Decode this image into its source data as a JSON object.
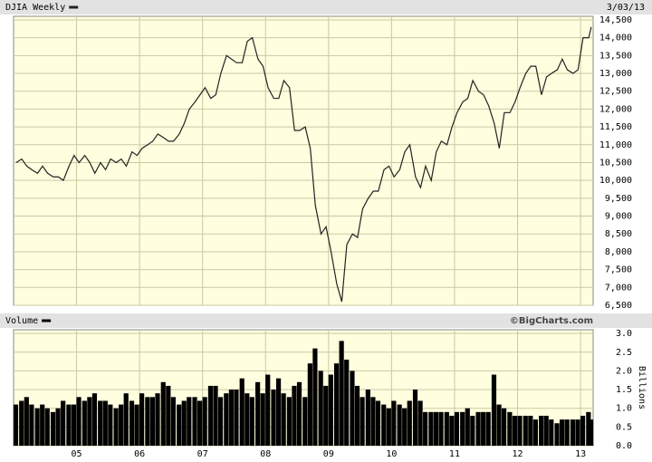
{
  "chart_data": [
    {
      "type": "line",
      "date": "3/03/13",
      "x": [
        2004.04,
        2004.13,
        2004.21,
        2004.29,
        2004.38,
        2004.46,
        2004.54,
        2004.63,
        2004.71,
        2004.79,
        2004.88,
        2004.96,
        2005.04,
        2005.13,
        2005.21,
        2005.29,
        2005.38,
        2005.46,
        2005.54,
        2005.63,
        2005.71,
        2005.79,
        2005.88,
        2005.96,
        2006.04,
        2006.13,
        2006.21,
        2006.29,
        2006.38,
        2006.46,
        2006.54,
        2006.63,
        2006.71,
        2006.79,
        2006.88,
        2006.96,
        2007.04,
        2007.13,
        2007.21,
        2007.29,
        2007.38,
        2007.46,
        2007.54,
        2007.63,
        2007.71,
        2007.79,
        2007.88,
        2007.96,
        2008.04,
        2008.13,
        2008.21,
        2008.29,
        2008.38,
        2008.46,
        2008.54,
        2008.63,
        2008.71,
        2008.79,
        2008.88,
        2008.96,
        2009.04,
        2009.13,
        2009.21,
        2009.29,
        2009.38,
        2009.46,
        2009.54,
        2009.63,
        2009.71,
        2009.79,
        2009.88,
        2009.96,
        2010.04,
        2010.13,
        2010.21,
        2010.29,
        2010.38,
        2010.46,
        2010.54,
        2010.63,
        2010.71,
        2010.79,
        2010.88,
        2010.96,
        2011.04,
        2011.13,
        2011.21,
        2011.29,
        2011.38,
        2011.46,
        2011.54,
        2011.63,
        2011.71,
        2011.79,
        2011.88,
        2011.96,
        2012.04,
        2012.13,
        2012.21,
        2012.29,
        2012.38,
        2012.46,
        2012.54,
        2012.63,
        2012.71,
        2012.79,
        2012.88,
        2012.96,
        2013.04,
        2013.13,
        2013.17
      ],
      "series": [
        {
          "name": "DJIA Weekly",
          "color": "#222222",
          "values": [
            10500,
            10600,
            10400,
            10300,
            10200,
            10400,
            10200,
            10100,
            10100,
            10000,
            10400,
            10700,
            10500,
            10700,
            10500,
            10200,
            10500,
            10300,
            10600,
            10500,
            10600,
            10400,
            10800,
            10700,
            10900,
            11000,
            11100,
            11300,
            11200,
            11100,
            11100,
            11300,
            11600,
            12000,
            12200,
            12400,
            12600,
            12300,
            12400,
            13000,
            13500,
            13400,
            13300,
            13300,
            13900,
            14000,
            13400,
            13200,
            12600,
            12300,
            12300,
            12800,
            12600,
            11400,
            11400,
            11500,
            10900,
            9300,
            8500,
            8700,
            8000,
            7100,
            6600,
            8200,
            8500,
            8400,
            9200,
            9500,
            9700,
            9700,
            10300,
            10400,
            10100,
            10300,
            10800,
            11000,
            10100,
            9800,
            10400,
            10000,
            10800,
            11100,
            11000,
            11500,
            11900,
            12200,
            12300,
            12800,
            12500,
            12400,
            12100,
            11600,
            10900,
            11900,
            11900,
            12200,
            12600,
            13000,
            13200,
            13200,
            12400,
            12900,
            13000,
            13100,
            13400,
            13100,
            13000,
            13100,
            14000,
            14000,
            14300
          ]
        }
      ],
      "xlim": [
        2004,
        2013.2
      ],
      "ylim": [
        6500,
        14600
      ],
      "yticks": [
        {
          "value": 6500,
          "label": "6,500"
        },
        {
          "value": 7000,
          "label": "7,000"
        },
        {
          "value": 7500,
          "label": "7,500"
        },
        {
          "value": 8000,
          "label": "8,000"
        },
        {
          "value": 8500,
          "label": "8,500"
        },
        {
          "value": 9000,
          "label": "9,000"
        },
        {
          "value": 9500,
          "label": "9,500"
        },
        {
          "value": 10000,
          "label": "10,000"
        },
        {
          "value": 10500,
          "label": "10,500"
        },
        {
          "value": 11000,
          "label": "11,000"
        },
        {
          "value": 11500,
          "label": "11,500"
        },
        {
          "value": 12000,
          "label": "12,000"
        },
        {
          "value": 12500,
          "label": "12,500"
        },
        {
          "value": 13000,
          "label": "13,000"
        },
        {
          "value": 13500,
          "label": "13,500"
        },
        {
          "value": 14000,
          "label": "14,000"
        },
        {
          "value": 14500,
          "label": "14,500"
        }
      ],
      "grid": true
    },
    {
      "type": "bar",
      "source": "©BigCharts.com",
      "ylabel": "Billions",
      "x": [
        2004.04,
        2004.13,
        2004.21,
        2004.29,
        2004.38,
        2004.46,
        2004.54,
        2004.63,
        2004.71,
        2004.79,
        2004.88,
        2004.96,
        2005.04,
        2005.13,
        2005.21,
        2005.29,
        2005.38,
        2005.46,
        2005.54,
        2005.63,
        2005.71,
        2005.79,
        2005.88,
        2005.96,
        2006.04,
        2006.13,
        2006.21,
        2006.29,
        2006.38,
        2006.46,
        2006.54,
        2006.63,
        2006.71,
        2006.79,
        2006.88,
        2006.96,
        2007.04,
        2007.13,
        2007.21,
        2007.29,
        2007.38,
        2007.46,
        2007.54,
        2007.63,
        2007.71,
        2007.79,
        2007.88,
        2007.96,
        2008.04,
        2008.13,
        2008.21,
        2008.29,
        2008.38,
        2008.46,
        2008.54,
        2008.63,
        2008.71,
        2008.79,
        2008.88,
        2008.96,
        2009.04,
        2009.13,
        2009.21,
        2009.29,
        2009.38,
        2009.46,
        2009.54,
        2009.63,
        2009.71,
        2009.79,
        2009.88,
        2009.96,
        2010.04,
        2010.13,
        2010.21,
        2010.29,
        2010.38,
        2010.46,
        2010.54,
        2010.63,
        2010.71,
        2010.79,
        2010.88,
        2010.96,
        2011.04,
        2011.13,
        2011.21,
        2011.29,
        2011.38,
        2011.46,
        2011.54,
        2011.63,
        2011.71,
        2011.79,
        2011.88,
        2011.96,
        2012.04,
        2012.13,
        2012.21,
        2012.29,
        2012.38,
        2012.46,
        2012.54,
        2012.63,
        2012.71,
        2012.79,
        2012.88,
        2012.96,
        2013.04,
        2013.13,
        2013.17
      ],
      "series": [
        {
          "name": "Volume",
          "color": "#000000",
          "values": [
            1.1,
            1.2,
            1.3,
            1.1,
            1.0,
            1.1,
            1.0,
            0.9,
            1.0,
            1.2,
            1.1,
            1.1,
            1.3,
            1.2,
            1.3,
            1.4,
            1.2,
            1.2,
            1.1,
            1.0,
            1.1,
            1.4,
            1.2,
            1.1,
            1.4,
            1.3,
            1.3,
            1.4,
            1.7,
            1.6,
            1.3,
            1.1,
            1.2,
            1.3,
            1.3,
            1.2,
            1.3,
            1.6,
            1.6,
            1.3,
            1.4,
            1.5,
            1.5,
            1.8,
            1.4,
            1.3,
            1.7,
            1.4,
            1.9,
            1.5,
            1.8,
            1.4,
            1.3,
            1.6,
            1.7,
            1.3,
            2.2,
            2.6,
            2.0,
            1.6,
            1.9,
            2.2,
            2.8,
            2.3,
            2.0,
            1.6,
            1.3,
            1.5,
            1.3,
            1.2,
            1.1,
            1.0,
            1.2,
            1.1,
            1.0,
            1.2,
            1.5,
            1.2,
            0.9,
            0.9,
            0.9,
            0.9,
            0.9,
            0.8,
            0.9,
            0.9,
            1.0,
            0.8,
            0.9,
            0.9,
            0.9,
            1.9,
            1.1,
            1.0,
            0.9,
            0.8,
            0.8,
            0.8,
            0.8,
            0.7,
            0.8,
            0.8,
            0.7,
            0.6,
            0.7,
            0.7,
            0.7,
            0.7,
            0.8,
            0.9,
            0.7
          ]
        }
      ],
      "xlim": [
        2004,
        2013.2
      ],
      "ylim": [
        0,
        3.1
      ],
      "xticks": [
        {
          "value": 2005,
          "label": "05"
        },
        {
          "value": 2006,
          "label": "06"
        },
        {
          "value": 2007,
          "label": "07"
        },
        {
          "value": 2008,
          "label": "08"
        },
        {
          "value": 2009,
          "label": "09"
        },
        {
          "value": 2010,
          "label": "10"
        },
        {
          "value": 2011,
          "label": "11"
        },
        {
          "value": 2012,
          "label": "12"
        },
        {
          "value": 2013,
          "label": "13"
        }
      ],
      "yticks": [
        {
          "value": 0,
          "label": "0.0"
        },
        0.5,
        {
          "value": 1,
          "label": "1.0"
        },
        1.5,
        {
          "value": 2,
          "label": "2.0"
        },
        2.5,
        {
          "value": 3,
          "label": "3.0"
        }
      ],
      "grid": true
    }
  ]
}
